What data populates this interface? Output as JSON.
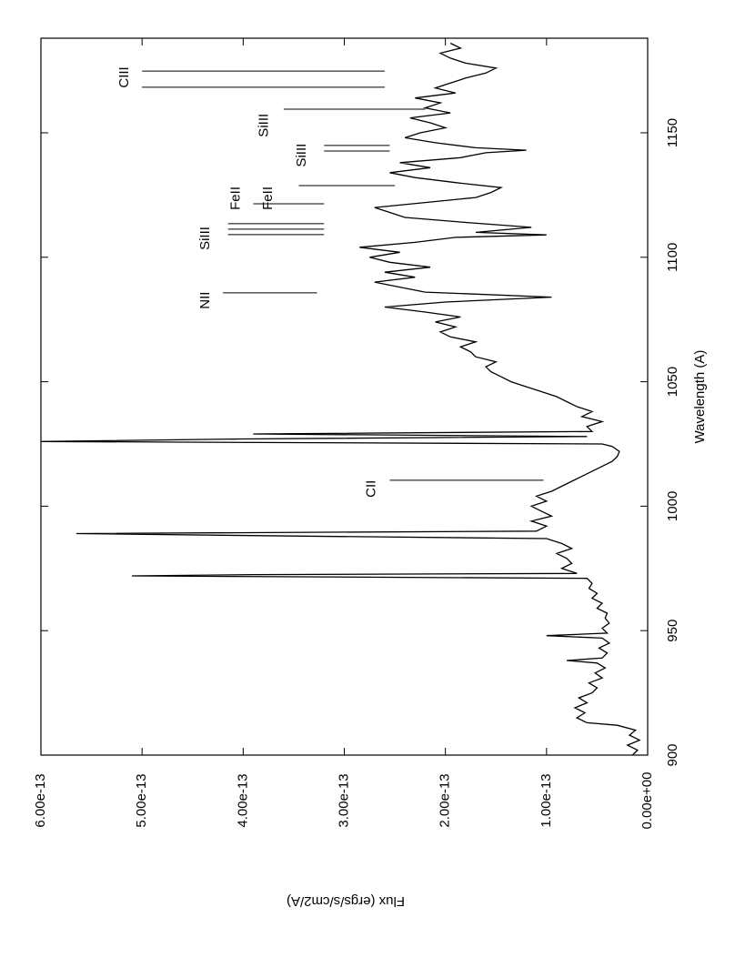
{
  "chart_data": {
    "type": "line",
    "xlabel": "Wavelength (A)",
    "ylabel": "Flux (ergs/s/cm2/A)",
    "xlim": [
      900,
      1188
    ],
    "ylim": [
      0,
      6e-13
    ],
    "xticks": [
      900,
      950,
      1000,
      1050,
      1100,
      1150
    ],
    "yticks": [
      {
        "value": 0,
        "label": "0.00e+00"
      },
      {
        "value": 1e-13,
        "label": "1.00e-13"
      },
      {
        "value": 2e-13,
        "label": "2.00e-13"
      },
      {
        "value": 3e-13,
        "label": "3.00e-13"
      },
      {
        "value": 4e-13,
        "label": "4.00e-13"
      },
      {
        "value": 5e-13,
        "label": "5.00e-13"
      },
      {
        "value": 6e-13,
        "label": "6.00e-13"
      }
    ],
    "color": "#000000",
    "x": [
      900,
      902,
      904,
      906,
      908,
      910,
      912,
      913,
      915,
      917,
      919,
      921,
      923,
      925,
      927,
      929,
      931,
      933,
      935,
      937,
      938,
      939,
      941,
      943,
      945,
      947,
      948,
      949,
      951,
      953,
      955,
      957,
      959,
      961,
      963,
      965,
      967,
      969,
      971,
      972,
      972.5,
      973,
      975,
      977,
      979,
      981,
      983,
      985,
      987,
      988,
      989,
      990,
      992,
      994,
      996,
      998,
      1000,
      1002,
      1004,
      1006,
      1008,
      1010,
      1012,
      1014,
      1016,
      1018,
      1020,
      1022,
      1024,
      1025,
      1026,
      1027,
      1028,
      1029,
      1030,
      1032,
      1034,
      1036,
      1038,
      1040,
      1042,
      1044,
      1046,
      1048,
      1050,
      1052,
      1054,
      1056,
      1058,
      1060,
      1062,
      1064,
      1066,
      1068,
      1070,
      1072,
      1074,
      1076,
      1078,
      1080,
      1082,
      1084,
      1086,
      1088,
      1090,
      1092,
      1094,
      1096,
      1098,
      1100,
      1102,
      1104,
      1106,
      1108,
      1109,
      1110,
      1112,
      1114,
      1116,
      1118,
      1120,
      1122,
      1124,
      1126,
      1128,
      1130,
      1132,
      1134,
      1136,
      1138,
      1140,
      1142,
      1143,
      1144,
      1146,
      1148,
      1150,
      1152,
      1154,
      1156,
      1158,
      1160,
      1162,
      1164,
      1166,
      1168,
      1170,
      1172,
      1174,
      1176,
      1178,
      1180,
      1182,
      1184,
      1186
    ],
    "values": [
      1.5e-14,
      1e-14,
      2e-14,
      8e-15,
      1.8e-14,
      1.2e-14,
      3e-14,
      6e-14,
      7e-14,
      6.2e-14,
      7.2e-14,
      6e-14,
      6.8e-14,
      5.5e-14,
      5e-14,
      5.8e-14,
      4.5e-14,
      5.2e-14,
      4.2e-14,
      5e-14,
      8e-14,
      4.5e-14,
      4e-14,
      4.8e-14,
      3.8e-14,
      4.5e-14,
      1e-13,
      4e-14,
      4.5e-14,
      3.8e-14,
      4.2e-14,
      4e-14,
      5e-14,
      4.5e-14,
      5.5e-14,
      5e-14,
      5.8e-14,
      5.5e-14,
      6e-14,
      5.1e-13,
      3.9e-13,
      7e-14,
      8.5e-14,
      7.5e-14,
      8e-14,
      9e-14,
      7.5e-14,
      8.5e-14,
      1e-13,
      3.5e-13,
      5.65e-13,
      1.1e-13,
      1e-13,
      1.15e-13,
      9.5e-14,
      1.05e-13,
      1.15e-13,
      1e-13,
      1.1e-13,
      9.5e-14,
      8.5e-14,
      7.5e-14,
      6.5e-14,
      5.5e-14,
      4.5e-14,
      3.5e-14,
      3e-14,
      2.8e-14,
      3.5e-14,
      4.5e-14,
      6e-13,
      4e-13,
      6e-14,
      3.9e-13,
      5.5e-14,
      6e-14,
      4.5e-14,
      6.5e-14,
      5.5e-14,
      7e-14,
      8e-14,
      9e-14,
      1.05e-13,
      1.2e-13,
      1.35e-13,
      1.45e-13,
      1.55e-13,
      1.6e-13,
      1.5e-13,
      1.7e-13,
      1.75e-13,
      1.85e-13,
      1.7e-13,
      1.95e-13,
      2.05e-13,
      1.9e-13,
      2.1e-13,
      1.85e-13,
      2.2e-13,
      2.6e-13,
      2e-13,
      9.5e-14,
      2.2e-13,
      2.45e-13,
      2.7e-13,
      2.3e-13,
      2.6e-13,
      2.15e-13,
      2.55e-13,
      2.75e-13,
      2.45e-13,
      2.85e-13,
      2.3e-13,
      1.9e-13,
      1e-13,
      1.7e-13,
      1.15e-13,
      1.8e-13,
      2.4e-13,
      2.55e-13,
      2.7e-13,
      2.2e-13,
      1.7e-13,
      1.55e-13,
      1.45e-13,
      1.9e-13,
      2.3e-13,
      2.55e-13,
      2.15e-13,
      2.45e-13,
      1.85e-13,
      1.6e-13,
      1.2e-13,
      1.7e-13,
      2.1e-13,
      2.4e-13,
      2.25e-13,
      2e-13,
      2.15e-13,
      2.35e-13,
      1.95e-13,
      2.2e-13,
      2.05e-13,
      2.3e-13,
      1.9e-13,
      2.1e-13,
      1.95e-13,
      1.8e-13,
      1.6e-13,
      1.5e-13,
      1.8e-13,
      1.95e-13,
      2.05e-13,
      1.85e-13,
      1.95e-13
    ],
    "annotations": [
      {
        "text": "CIII",
        "x": 1172.3,
        "y": 5.17e-13,
        "lines": [
          1168.3,
          1174.8
        ],
        "span": [
          5e-13,
          2.6e-13
        ]
      },
      {
        "text": "SiIII",
        "x": 1153,
        "y": 3.79e-13,
        "lines": [
          1159.5
        ],
        "span": [
          3.6e-13,
          2.2e-13
        ]
      },
      {
        "text": "SiIII",
        "x": 1141,
        "y": 3.42e-13,
        "lines": [
          1142.7,
          1144.9
        ],
        "span": [
          3.2e-13,
          2.55e-13
        ]
      },
      {
        "text": "FeII",
        "x": 1123.7,
        "y": 4.07e-13,
        "lines": [
          1121.5
        ],
        "span": [
          3.9e-13,
          3.2e-13
        ]
      },
      {
        "text": "FeII",
        "x": 1123.7,
        "y": 3.75e-13,
        "lines": [
          1128.8
        ],
        "span": [
          3.45e-13,
          2.5e-13
        ]
      },
      {
        "text": "SiIII",
        "x": 1107.6,
        "y": 4.37e-13,
        "lines": [
          1109.1,
          1111.3,
          1113.5
        ],
        "span": [
          4.15e-13,
          3.2e-13
        ]
      },
      {
        "text": "NII",
        "x": 1082.7,
        "y": 4.37e-13,
        "lines": [
          1085.7
        ],
        "span": [
          4.2e-13,
          3.27e-13
        ]
      },
      {
        "text": "CII",
        "x": 1007,
        "y": 2.73e-13,
        "lines": [
          1010.4
        ],
        "span": [
          2.55e-13,
          1.03e-13
        ]
      }
    ]
  }
}
